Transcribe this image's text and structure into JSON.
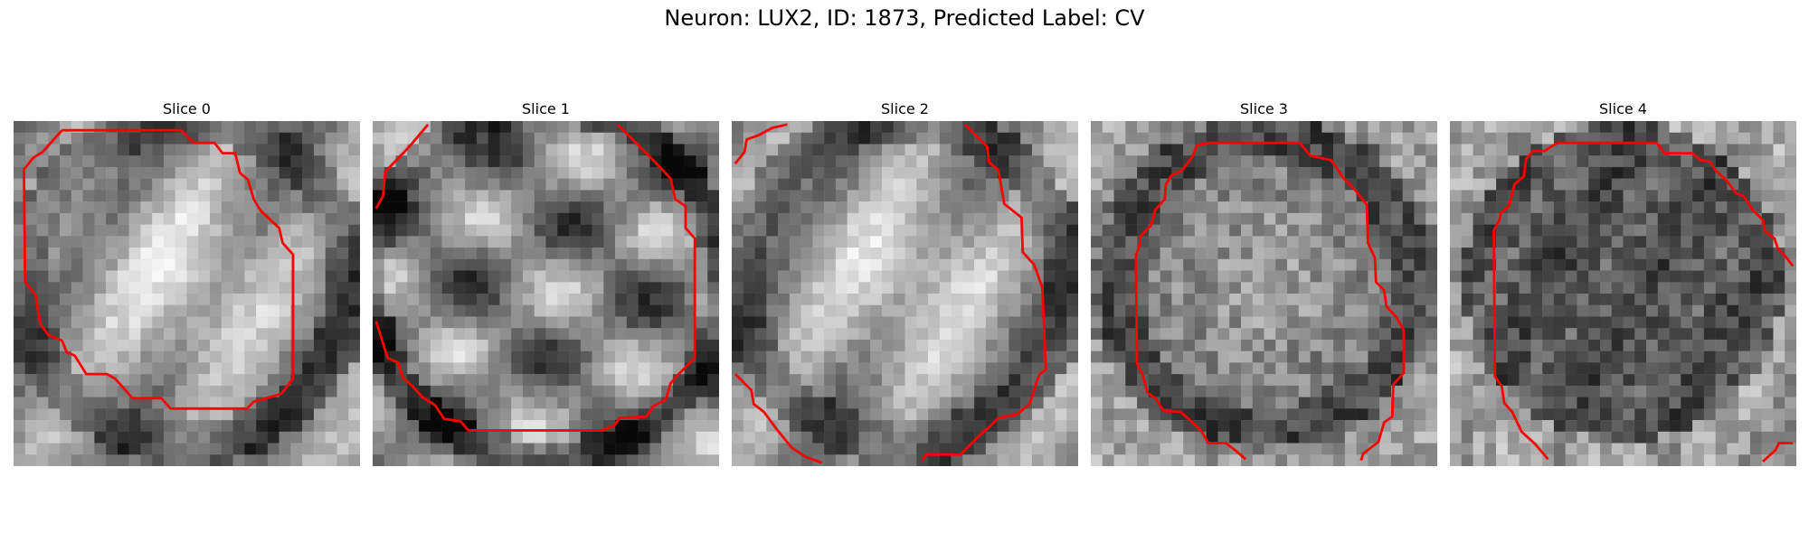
{
  "figure": {
    "title": "Neuron: LUX2, ID: 1873, Predicted Label: CV"
  },
  "panels": [
    {
      "title": "Slice 0",
      "seed": 11,
      "style": "bright"
    },
    {
      "title": "Slice 1",
      "seed": 23,
      "style": "streaks"
    },
    {
      "title": "Slice 2",
      "seed": 37,
      "style": "bright"
    },
    {
      "title": "Slice 3",
      "seed": 41,
      "style": "noise"
    },
    {
      "title": "Slice 4",
      "seed": 59,
      "style": "dark"
    }
  ],
  "contour_color": "#ff0000"
}
